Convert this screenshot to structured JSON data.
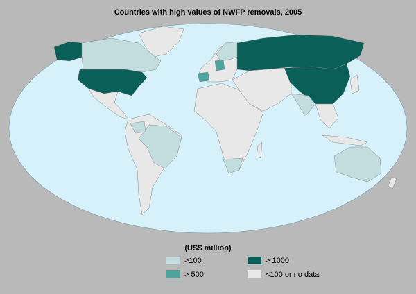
{
  "header": {
    "title": "Countries with high values of NWFP removals, 2005"
  },
  "legend": {
    "title": "(US$ million)",
    "items": [
      {
        "label": ">100",
        "color": "#c3dcde"
      },
      {
        "label": "> 500",
        "color": "#4fa39e"
      },
      {
        "label": "> 1000",
        "color": "#0a5f59"
      },
      {
        "label": "<100 or no data",
        "color": "#e8e8e8"
      }
    ]
  }
}
